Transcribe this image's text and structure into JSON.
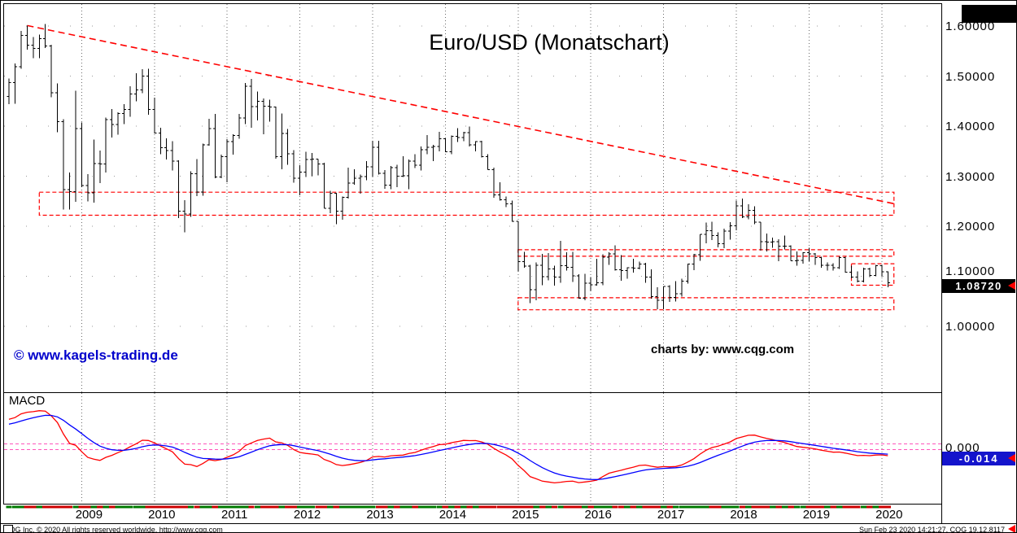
{
  "title": "Euro/USD (Monatschart)",
  "watermark": "© www.kagels-trading.de",
  "credit": "charts by: www.cqg.com",
  "price_axis": {
    "labels": [
      {
        "text": "1.60000",
        "value": 1.6
      },
      {
        "text": "1.50000",
        "value": 1.5
      },
      {
        "text": "1.40000",
        "value": 1.4
      },
      {
        "text": "1.30000",
        "value": 1.3
      },
      {
        "text": "1.20000",
        "value": 1.2
      },
      {
        "text": "1.10000",
        "value": 1.1
      },
      {
        "text": "1.00000",
        "value": 1.0
      }
    ],
    "last_price": {
      "text": "1.08720",
      "value": 1.0872
    }
  },
  "macd_panel": {
    "label": "MACD",
    "zero_label": "0.000",
    "value": {
      "text": "-0.014",
      "value": -0.014
    },
    "colors": {
      "macd_line": "#ff0000",
      "signal_line": "#0000ff",
      "zero_line": "#ff55bb",
      "value_box": "#1414cc"
    }
  },
  "x_axis": {
    "years": [
      "2009",
      "2010",
      "2011",
      "2012",
      "2013",
      "2014",
      "2015",
      "2016",
      "2017",
      "2018",
      "2019",
      "2020"
    ]
  },
  "footer": {
    "left": "CQG Inc. © 2020 All rights reserved worldwide. http://www.cqg.com",
    "right": "Sun Feb 23 2020 14:21:27, CQG 19.12.8117"
  },
  "colors": {
    "bars": "#000000",
    "annotations": "#ff0000",
    "grid": "#808080",
    "up_month": "#007a00",
    "down_month": "#cc0000",
    "watermark": "#0000cc",
    "last_price_box": "#000000"
  },
  "chart_data": {
    "type": "ohlc-bar",
    "title": "Euro/USD (Monatschart)",
    "timeframe": "monthly",
    "start_month": "2008-01",
    "ylim": [
      0.87,
      1.64
    ],
    "y_gridlines": [
      1.0,
      1.1,
      1.2,
      1.3,
      1.4,
      1.5,
      1.6
    ],
    "last_price": 1.0872,
    "ohlc": [
      [
        1.459,
        1.495,
        1.444,
        1.487
      ],
      [
        1.487,
        1.525,
        1.445,
        1.519
      ],
      [
        1.519,
        1.59,
        1.515,
        1.581
      ],
      [
        1.581,
        1.601,
        1.553,
        1.562
      ],
      [
        1.562,
        1.578,
        1.536,
        1.555
      ],
      [
        1.555,
        1.583,
        1.536,
        1.575
      ],
      [
        1.575,
        1.604,
        1.556,
        1.56
      ],
      [
        1.56,
        1.563,
        1.458,
        1.467
      ],
      [
        1.467,
        1.485,
        1.388,
        1.409
      ],
      [
        1.409,
        1.414,
        1.233,
        1.273
      ],
      [
        1.273,
        1.307,
        1.233,
        1.269
      ],
      [
        1.269,
        1.471,
        1.249,
        1.395
      ],
      [
        1.395,
        1.407,
        1.278,
        1.281
      ],
      [
        1.281,
        1.304,
        1.25,
        1.267
      ],
      [
        1.267,
        1.373,
        1.247,
        1.325
      ],
      [
        1.325,
        1.351,
        1.286,
        1.324
      ],
      [
        1.324,
        1.417,
        1.307,
        1.413
      ],
      [
        1.413,
        1.434,
        1.377,
        1.403
      ],
      [
        1.403,
        1.428,
        1.383,
        1.425
      ],
      [
        1.425,
        1.444,
        1.404,
        1.433
      ],
      [
        1.433,
        1.48,
        1.419,
        1.464
      ],
      [
        1.464,
        1.506,
        1.45,
        1.472
      ],
      [
        1.472,
        1.514,
        1.466,
        1.5
      ],
      [
        1.5,
        1.515,
        1.423,
        1.433
      ],
      [
        1.433,
        1.457,
        1.385,
        1.386
      ],
      [
        1.386,
        1.397,
        1.344,
        1.357
      ],
      [
        1.357,
        1.376,
        1.333,
        1.351
      ],
      [
        1.351,
        1.37,
        1.311,
        1.33
      ],
      [
        1.33,
        1.332,
        1.216,
        1.23
      ],
      [
        1.23,
        1.252,
        1.188,
        1.224
      ],
      [
        1.224,
        1.31,
        1.219,
        1.305
      ],
      [
        1.305,
        1.334,
        1.26,
        1.268
      ],
      [
        1.268,
        1.365,
        1.261,
        1.363
      ],
      [
        1.363,
        1.415,
        1.361,
        1.395
      ],
      [
        1.395,
        1.424,
        1.296,
        1.298
      ],
      [
        1.298,
        1.343,
        1.296,
        1.339
      ],
      [
        1.339,
        1.374,
        1.288,
        1.369
      ],
      [
        1.369,
        1.384,
        1.343,
        1.381
      ],
      [
        1.381,
        1.424,
        1.375,
        1.416
      ],
      [
        1.416,
        1.486,
        1.404,
        1.48
      ],
      [
        1.48,
        1.494,
        1.397,
        1.439
      ],
      [
        1.439,
        1.469,
        1.411,
        1.45
      ],
      [
        1.45,
        1.455,
        1.384,
        1.44
      ],
      [
        1.44,
        1.453,
        1.409,
        1.438
      ],
      [
        1.438,
        1.439,
        1.335,
        1.339
      ],
      [
        1.339,
        1.425,
        1.314,
        1.385
      ],
      [
        1.385,
        1.394,
        1.323,
        1.345
      ],
      [
        1.345,
        1.352,
        1.287,
        1.296
      ],
      [
        1.296,
        1.322,
        1.262,
        1.308
      ],
      [
        1.308,
        1.349,
        1.298,
        1.333
      ],
      [
        1.333,
        1.346,
        1.3,
        1.334
      ],
      [
        1.334,
        1.334,
        1.302,
        1.324
      ],
      [
        1.324,
        1.327,
        1.236,
        1.236
      ],
      [
        1.236,
        1.271,
        1.226,
        1.266
      ],
      [
        1.266,
        1.267,
        1.204,
        1.23
      ],
      [
        1.23,
        1.259,
        1.213,
        1.258
      ],
      [
        1.258,
        1.317,
        1.255,
        1.286
      ],
      [
        1.286,
        1.314,
        1.283,
        1.296
      ],
      [
        1.296,
        1.303,
        1.265,
        1.299
      ],
      [
        1.299,
        1.33,
        1.292,
        1.319
      ],
      [
        1.319,
        1.371,
        1.299,
        1.358
      ],
      [
        1.358,
        1.371,
        1.303,
        1.306
      ],
      [
        1.306,
        1.312,
        1.275,
        1.282
      ],
      [
        1.282,
        1.32,
        1.274,
        1.317
      ],
      [
        1.317,
        1.323,
        1.278,
        1.3
      ],
      [
        1.3,
        1.34,
        1.298,
        1.301
      ],
      [
        1.301,
        1.333,
        1.274,
        1.33
      ],
      [
        1.33,
        1.344,
        1.316,
        1.322
      ],
      [
        1.322,
        1.359,
        1.311,
        1.353
      ],
      [
        1.353,
        1.382,
        1.344,
        1.358
      ],
      [
        1.358,
        1.363,
        1.33,
        1.359
      ],
      [
        1.359,
        1.389,
        1.35,
        1.375
      ],
      [
        1.375,
        1.376,
        1.348,
        1.349
      ],
      [
        1.349,
        1.381,
        1.344,
        1.38
      ],
      [
        1.38,
        1.396,
        1.368,
        1.377
      ],
      [
        1.377,
        1.389,
        1.37,
        1.387
      ],
      [
        1.387,
        1.399,
        1.359,
        1.363
      ],
      [
        1.363,
        1.37,
        1.35,
        1.369
      ],
      [
        1.369,
        1.371,
        1.337,
        1.339
      ],
      [
        1.339,
        1.344,
        1.313,
        1.313
      ],
      [
        1.313,
        1.317,
        1.257,
        1.263
      ],
      [
        1.263,
        1.288,
        1.251,
        1.253
      ],
      [
        1.253,
        1.259,
        1.238,
        1.245
      ],
      [
        1.245,
        1.251,
        1.209,
        1.21
      ],
      [
        1.21,
        1.21,
        1.11,
        1.129
      ],
      [
        1.129,
        1.149,
        1.117,
        1.12
      ],
      [
        1.12,
        1.123,
        1.046,
        1.073
      ],
      [
        1.073,
        1.128,
        1.052,
        1.122
      ],
      [
        1.122,
        1.145,
        1.082,
        1.099
      ],
      [
        1.099,
        1.146,
        1.092,
        1.115
      ],
      [
        1.115,
        1.121,
        1.081,
        1.098
      ],
      [
        1.098,
        1.171,
        1.087,
        1.121
      ],
      [
        1.121,
        1.148,
        1.111,
        1.118
      ],
      [
        1.118,
        1.149,
        1.089,
        1.101
      ],
      [
        1.101,
        1.104,
        1.055,
        1.056
      ],
      [
        1.056,
        1.105,
        1.052,
        1.086
      ],
      [
        1.086,
        1.098,
        1.071,
        1.083
      ],
      [
        1.083,
        1.135,
        1.081,
        1.087
      ],
      [
        1.087,
        1.144,
        1.082,
        1.138
      ],
      [
        1.138,
        1.148,
        1.123,
        1.145
      ],
      [
        1.145,
        1.162,
        1.111,
        1.113
      ],
      [
        1.113,
        1.142,
        1.091,
        1.111
      ],
      [
        1.111,
        1.118,
        1.095,
        1.117
      ],
      [
        1.117,
        1.135,
        1.107,
        1.116
      ],
      [
        1.116,
        1.129,
        1.114,
        1.124
      ],
      [
        1.124,
        1.127,
        1.087,
        1.098
      ],
      [
        1.098,
        1.114,
        1.055,
        1.059
      ],
      [
        1.059,
        1.078,
        1.034,
        1.052
      ],
      [
        1.052,
        1.08,
        1.034,
        1.08
      ],
      [
        1.08,
        1.082,
        1.049,
        1.058
      ],
      [
        1.058,
        1.09,
        1.05,
        1.065
      ],
      [
        1.065,
        1.095,
        1.059,
        1.09
      ],
      [
        1.09,
        1.125,
        1.085,
        1.124
      ],
      [
        1.124,
        1.145,
        1.112,
        1.143
      ],
      [
        1.143,
        1.184,
        1.131,
        1.184
      ],
      [
        1.184,
        1.207,
        1.166,
        1.191
      ],
      [
        1.191,
        1.209,
        1.172,
        1.181
      ],
      [
        1.181,
        1.188,
        1.158,
        1.165
      ],
      [
        1.165,
        1.195,
        1.156,
        1.19
      ],
      [
        1.19,
        1.208,
        1.173,
        1.201
      ],
      [
        1.201,
        1.251,
        1.192,
        1.241
      ],
      [
        1.241,
        1.255,
        1.216,
        1.219
      ],
      [
        1.219,
        1.244,
        1.214,
        1.232
      ],
      [
        1.232,
        1.24,
        1.204,
        1.208
      ],
      [
        1.208,
        1.208,
        1.151,
        1.169
      ],
      [
        1.169,
        1.185,
        1.15,
        1.168
      ],
      [
        1.168,
        1.177,
        1.157,
        1.169
      ],
      [
        1.169,
        1.174,
        1.13,
        1.16
      ],
      [
        1.16,
        1.181,
        1.154,
        1.16
      ],
      [
        1.16,
        1.162,
        1.131,
        1.131
      ],
      [
        1.131,
        1.15,
        1.121,
        1.132
      ],
      [
        1.132,
        1.148,
        1.125,
        1.147
      ],
      [
        1.147,
        1.157,
        1.13,
        1.145
      ],
      [
        1.145,
        1.146,
        1.123,
        1.137
      ],
      [
        1.137,
        1.139,
        1.117,
        1.122
      ],
      [
        1.122,
        1.128,
        1.111,
        1.122
      ],
      [
        1.122,
        1.126,
        1.111,
        1.117
      ],
      [
        1.117,
        1.14,
        1.115,
        1.137
      ],
      [
        1.137,
        1.139,
        1.107,
        1.108
      ],
      [
        1.108,
        1.121,
        1.096,
        1.098
      ],
      [
        1.098,
        1.11,
        1.088,
        1.09
      ],
      [
        1.09,
        1.117,
        1.088,
        1.115
      ],
      [
        1.115,
        1.117,
        1.098,
        1.102
      ],
      [
        1.102,
        1.123,
        1.1,
        1.121
      ],
      [
        1.121,
        1.122,
        1.099,
        1.109
      ],
      [
        1.109,
        1.11,
        1.078,
        1.087
      ]
    ],
    "annotations": {
      "trendline": {
        "from_month": "2008-04",
        "from_price": 1.601,
        "to_month": "2020-03",
        "to_price": 1.245,
        "color": "#ff0000",
        "style": "dashed"
      },
      "boxes": [
        {
          "from_month": "2008-06",
          "to_month": "2020-03",
          "price_top": 1.268,
          "price_bottom": 1.222
        },
        {
          "from_month": "2015-01",
          "to_month": "2020-03",
          "price_top": 1.153,
          "price_bottom": 1.14
        },
        {
          "from_month": "2015-01",
          "to_month": "2020-03",
          "price_top": 1.057,
          "price_bottom": 1.033
        },
        {
          "from_month": "2019-08",
          "to_month": "2020-03",
          "price_top": 1.125,
          "price_bottom": 1.082
        }
      ]
    },
    "macd": {
      "fast": 12,
      "slow": 26,
      "signal": 9,
      "seed": {
        "ema12": 1.425,
        "ema26": 1.375,
        "signal": 0.04
      },
      "last_value": -0.014
    }
  }
}
